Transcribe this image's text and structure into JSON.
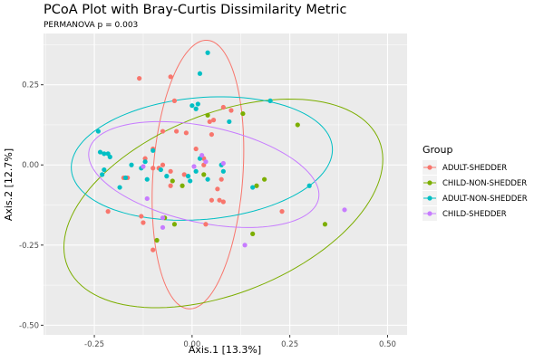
{
  "chart_data": {
    "type": "scatter",
    "title": "PCoA Plot with Bray-Curtis Dissimilarity Metric",
    "subtitle": "PERMANOVA p = 0.003",
    "xlabel": "Axis.1  [13.3%]",
    "ylabel": "Axis.2  [12.7%]",
    "xlim": [
      -0.38,
      0.55
    ],
    "ylim": [
      -0.53,
      0.41
    ],
    "xticks": [
      -0.25,
      0.0,
      0.25,
      0.5
    ],
    "xtick_labels": [
      "-0.25",
      "0.00",
      "0.25",
      "0.50"
    ],
    "yticks": [
      -0.5,
      -0.25,
      0.0,
      0.25
    ],
    "ytick_labels": [
      "-0.50",
      "-0.25",
      "0.00",
      "0.25"
    ],
    "grid": true,
    "legend": {
      "title": "Group",
      "position": "right"
    },
    "series": [
      {
        "name": "ADULT-SHEDDER",
        "color": "#F8766D",
        "points": [
          [
            -0.135,
            0.27
          ],
          [
            -0.055,
            0.275
          ],
          [
            -0.045,
            0.2
          ],
          [
            -0.075,
            0.105
          ],
          [
            -0.04,
            0.105
          ],
          [
            -0.015,
            0.1
          ],
          [
            0.045,
            0.135
          ],
          [
            0.08,
            0.18
          ],
          [
            0.05,
            0.095
          ],
          [
            0.055,
            0.14
          ],
          [
            0.1,
            0.17
          ],
          [
            -0.1,
            -0.01
          ],
          [
            -0.075,
            0.0
          ],
          [
            -0.12,
            0.02
          ],
          [
            -0.085,
            -0.01
          ],
          [
            -0.175,
            -0.04
          ],
          [
            -0.165,
            -0.04
          ],
          [
            -0.1,
            0.05
          ],
          [
            0.01,
            0.05
          ],
          [
            -0.02,
            -0.03
          ],
          [
            -0.055,
            -0.065
          ],
          [
            -0.055,
            -0.02
          ],
          [
            0.03,
            0.0
          ],
          [
            0.065,
            -0.075
          ],
          [
            0.07,
            -0.11
          ],
          [
            0.08,
            -0.115
          ],
          [
            0.05,
            -0.11
          ],
          [
            0.075,
            -0.045
          ],
          [
            0.03,
            0.02
          ],
          [
            -0.215,
            -0.145
          ],
          [
            -0.13,
            -0.16
          ],
          [
            -0.125,
            -0.18
          ],
          [
            -0.1,
            -0.265
          ],
          [
            0.035,
            -0.185
          ],
          [
            0.23,
            -0.145
          ]
        ]
      },
      {
        "name": "CHILD-NON-SHEDDER",
        "color": "#7CAE00",
        "points": [
          [
            0.13,
            0.16
          ],
          [
            0.27,
            0.125
          ],
          [
            0.04,
            0.155
          ],
          [
            0.165,
            -0.065
          ],
          [
            0.185,
            -0.045
          ],
          [
            -0.025,
            -0.065
          ],
          [
            0.34,
            -0.185
          ],
          [
            0.155,
            -0.215
          ],
          [
            -0.09,
            -0.235
          ],
          [
            -0.07,
            -0.165
          ],
          [
            -0.045,
            -0.185
          ],
          [
            -0.05,
            -0.05
          ],
          [
            0.03,
            -0.03
          ]
        ]
      },
      {
        "name": "ADULT-NON-SHEDDER",
        "color": "#00BFC4",
        "points": [
          [
            0.04,
            0.35
          ],
          [
            0.02,
            0.285
          ],
          [
            -0.24,
            0.105
          ],
          [
            -0.235,
            0.04
          ],
          [
            -0.215,
            0.035
          ],
          [
            -0.21,
            0.025
          ],
          [
            -0.225,
            0.035
          ],
          [
            -0.17,
            -0.04
          ],
          [
            -0.185,
            -0.07
          ],
          [
            -0.155,
            0.0
          ],
          [
            -0.12,
            0.01
          ],
          [
            -0.13,
            -0.01
          ],
          [
            -0.1,
            0.045
          ],
          [
            -0.065,
            -0.035
          ],
          [
            -0.115,
            -0.045
          ],
          [
            0.0,
            0.185
          ],
          [
            0.015,
            0.19
          ],
          [
            0.01,
            0.175
          ],
          [
            0.095,
            0.135
          ],
          [
            0.2,
            0.2
          ],
          [
            0.02,
            0.02
          ],
          [
            0.04,
            -0.045
          ],
          [
            0.075,
            0.0
          ],
          [
            0.08,
            -0.02
          ],
          [
            0.01,
            -0.02
          ],
          [
            0.155,
            -0.07
          ],
          [
            0.3,
            -0.065
          ],
          [
            -0.225,
            -0.015
          ],
          [
            -0.23,
            -0.03
          ],
          [
            -0.005,
            -0.05
          ],
          [
            -0.08,
            -0.015
          ],
          [
            -0.01,
            -0.035
          ]
        ]
      },
      {
        "name": "CHILD-SHEDDER",
        "color": "#C77CFF",
        "points": [
          [
            0.025,
            0.03
          ],
          [
            0.035,
            0.01
          ],
          [
            0.08,
            0.005
          ],
          [
            0.005,
            -0.005
          ],
          [
            -0.115,
            -0.105
          ],
          [
            -0.075,
            -0.165
          ],
          [
            -0.075,
            -0.195
          ],
          [
            0.135,
            -0.25
          ],
          [
            0.39,
            -0.14
          ],
          [
            -0.125,
            -0.005
          ]
        ]
      }
    ],
    "ellipses": [
      {
        "group": "ADULT-SHEDDER",
        "cx": 0.015,
        "cy": -0.03,
        "a": 0.345,
        "b": 0.14,
        "angle_deg": 86
      },
      {
        "group": "CHILD-NON-SHEDDER",
        "cx": 0.08,
        "cy": -0.12,
        "a": 0.43,
        "b": 0.28,
        "angle_deg": 22
      },
      {
        "group": "ADULT-NON-SHEDDER",
        "cx": 0.025,
        "cy": 0.02,
        "a": 0.335,
        "b": 0.19,
        "angle_deg": 5
      },
      {
        "group": "CHILD-SHEDDER",
        "cx": 0.03,
        "cy": -0.03,
        "a": 0.3,
        "b": 0.15,
        "angle_deg": -12
      }
    ]
  }
}
